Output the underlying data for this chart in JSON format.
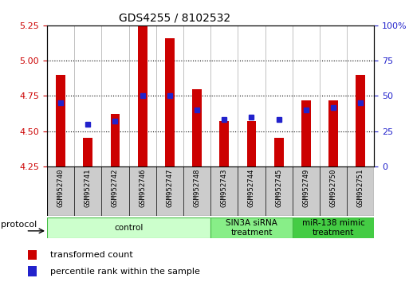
{
  "title": "GDS4255 / 8102532",
  "samples": [
    "GSM952740",
    "GSM952741",
    "GSM952742",
    "GSM952746",
    "GSM952747",
    "GSM952748",
    "GSM952743",
    "GSM952744",
    "GSM952745",
    "GSM952749",
    "GSM952750",
    "GSM952751"
  ],
  "transformed_counts": [
    4.9,
    4.45,
    4.62,
    5.25,
    5.16,
    4.8,
    4.57,
    4.57,
    4.45,
    4.72,
    4.72,
    4.9
  ],
  "percentile_ranks": [
    45,
    30,
    32,
    50,
    50,
    40,
    33,
    35,
    33,
    40,
    42,
    45
  ],
  "ylim_left": [
    4.25,
    5.25
  ],
  "ylim_right": [
    0,
    100
  ],
  "yticks_left": [
    4.25,
    4.5,
    4.75,
    5.0,
    5.25
  ],
  "yticks_right": [
    0,
    25,
    50,
    75,
    100
  ],
  "ytick_labels_right": [
    "0",
    "25",
    "50",
    "75",
    "100%"
  ],
  "bar_color": "#cc0000",
  "dot_color": "#2222cc",
  "base_value": 4.25,
  "bar_width": 0.35,
  "groups": [
    {
      "label": "control",
      "start": 0,
      "end": 6,
      "color": "#ccffcc",
      "edge_color": "#44bb44"
    },
    {
      "label": "SIN3A siRNA\ntreatment",
      "start": 6,
      "end": 9,
      "color": "#88ee88",
      "edge_color": "#44bb44"
    },
    {
      "label": "miR-138 mimic\ntreatment",
      "start": 9,
      "end": 12,
      "color": "#44cc44",
      "edge_color": "#44bb44"
    }
  ],
  "protocol_label": "protocol",
  "legend_items": [
    {
      "label": "transformed count",
      "color": "#cc0000"
    },
    {
      "label": "percentile rank within the sample",
      "color": "#2222cc"
    }
  ],
  "tick_color_left": "#cc0000",
  "tick_color_right": "#2222cc",
  "title_fontsize": 10,
  "tick_fontsize": 8,
  "sample_label_fontsize": 6.5,
  "group_label_fontsize": 7.5,
  "legend_fontsize": 8,
  "protocol_fontsize": 8,
  "hgrid_values": [
    4.5,
    4.75,
    5.0
  ],
  "xticklabel_bg": "#cccccc"
}
